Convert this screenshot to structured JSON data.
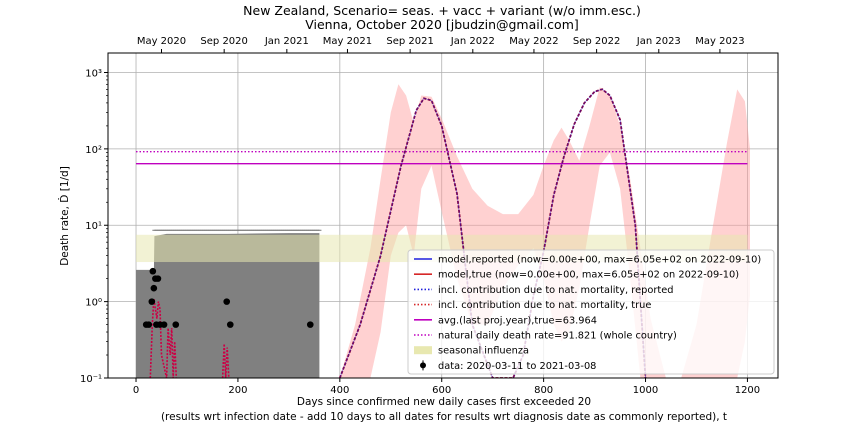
{
  "chart_data": {
    "type": "line",
    "title": "New Zealand, Scenario= seas. + vacc + variant (w/o imm.esc.)",
    "subtitle": "Vienna, October 2020 [jbudzin@gmail.com]",
    "xlabel": "Days since confirmed new daily cases first exceeded 20",
    "xlabel2": "(results wrt infection date - add 10 days to all dates for results wrt diagnosis date as commonly reported), t",
    "ylabel": "Death rate, Ḋ [1/d]",
    "y_scale": "log",
    "xlim": [
      -55,
      1260
    ],
    "ylim": [
      0.1,
      1800
    ],
    "x_ticks": [
      0,
      200,
      400,
      600,
      800,
      1000,
      1200
    ],
    "x_tick_labels": [
      "0",
      "200",
      "400",
      "600",
      "800",
      "1000",
      "1200"
    ],
    "y_ticks": [
      0.1,
      1,
      10,
      100,
      1000
    ],
    "y_tick_labels": [
      "10⁻¹",
      "10⁰",
      "10¹",
      "10²",
      "10³"
    ],
    "top_axis": {
      "tick_days": [
        50,
        173,
        296,
        415,
        538,
        661,
        781,
        904,
        1026,
        1146
      ],
      "tick_labels": [
        "May 2020",
        "Sep 2020",
        "Jan 2021",
        "May 2021",
        "Sep 2021",
        "Jan 2022",
        "May 2022",
        "Sep 2022",
        "Jan 2023",
        "May 2023"
      ]
    },
    "grid": true,
    "legend_position": "lower-right",
    "legend": [
      {
        "label": "model,reported (now=0.00e+00, max=6.05e+02 on 2022-09-10)",
        "style": "solid",
        "color": "#1f1fdd"
      },
      {
        "label": "model,true (now=0.00e+00, max=6.05e+02 on 2022-09-10)",
        "style": "solid",
        "color": "#d62728"
      },
      {
        "label": "incl. contribution due to nat. mortality, reported",
        "style": "dotted",
        "color": "#1f1fdd"
      },
      {
        "label": "incl. contribution due to nat. mortality, true",
        "style": "dotted",
        "color": "#d62728"
      },
      {
        "label": "avg.(last proj.year),true=63.964",
        "style": "solid",
        "color": "#bf00bf"
      },
      {
        "label": "natural daily death rate=91.821 (whole country)",
        "style": "dotted",
        "color": "#bf00bf"
      },
      {
        "label": "seasonal influenza",
        "style": "patch",
        "color": "#e8e8b0"
      },
      {
        "label": "data: 2020-03-11 to 2021-03-08",
        "style": "errorbar",
        "color": "#000000"
      }
    ],
    "reference_lines": {
      "avg_last_year": {
        "y": 63.964,
        "x_range": [
          0,
          1200
        ],
        "color": "#bf00bf"
      },
      "natural_death_rate": {
        "y": 91.821,
        "x_range": [
          0,
          1200
        ],
        "color": "#bf00bf"
      }
    },
    "seasonal_influenza_band": {
      "x_range": [
        0,
        1200
      ],
      "y_range": [
        3.3,
        7.5
      ],
      "color": "#e8e8b0"
    },
    "data_points": {
      "x": [
        20,
        25,
        31,
        33,
        35,
        38,
        40,
        43,
        47,
        55,
        78,
        178,
        185,
        342
      ],
      "y": [
        0.5,
        0.5,
        1.0,
        2.5,
        1.5,
        2.0,
        0.5,
        2.0,
        0.5,
        0.5,
        0.5,
        1.0,
        0.5,
        0.5
      ],
      "color": "#000000"
    },
    "data_cumulative_band": {
      "x": [
        0,
        35,
        36,
        60,
        180,
        300,
        360
      ],
      "y_upper": [
        2.6,
        2.6,
        7.2,
        7.7,
        7.7,
        7.9,
        7.9
      ],
      "color": "#808080"
    },
    "model_curve": {
      "x": [
        400,
        440,
        480,
        520,
        550,
        565,
        580,
        600,
        630,
        660,
        700,
        740,
        760,
        780,
        800,
        820,
        840,
        860,
        880,
        900,
        915,
        930,
        950,
        980,
        1000
      ],
      "y": [
        0.1,
        0.5,
        4.0,
        60,
        320,
        460,
        430,
        200,
        26,
        0.5,
        0.1,
        0.1,
        0.2,
        1.2,
        4.5,
        25,
        80,
        210,
        400,
        560,
        605,
        500,
        240,
        10,
        0.1
      ],
      "color": "#8b0038"
    },
    "confidence_band": {
      "x": [
        400,
        430,
        460,
        480,
        500,
        515,
        530,
        545,
        560,
        580,
        600,
        630,
        660,
        690,
        720,
        750,
        780,
        800,
        820,
        835,
        850,
        870,
        890,
        910,
        930,
        950,
        970,
        990,
        1010,
        1040,
        1070,
        1100,
        1130,
        1160,
        1180,
        1195,
        1205
      ],
      "y_upper": [
        0.1,
        0.5,
        5,
        40,
        300,
        700,
        500,
        220,
        500,
        480,
        250,
        80,
        30,
        18,
        14,
        14,
        25,
        60,
        130,
        190,
        130,
        70,
        200,
        640,
        500,
        200,
        40,
        5,
        0.6,
        0.1,
        0.1,
        0.5,
        8,
        120,
        600,
        420,
        100
      ],
      "y_lower": [
        0.1,
        0.1,
        0.1,
        0.4,
        4,
        8,
        10,
        4,
        30,
        60,
        15,
        2,
        0.5,
        0.5,
        1.5,
        3,
        5,
        2,
        0.5,
        0.3,
        0.4,
        1.5,
        10,
        60,
        90,
        30,
        2,
        0.1,
        0.1,
        0.1,
        0.1,
        0.1,
        0.1,
        0.1,
        0.1,
        0.3,
        1.2
      ],
      "color": "#ff9999"
    },
    "early_model_spikes": {
      "x": [
        28,
        32,
        35,
        38,
        41,
        44,
        47,
        50,
        60,
        63,
        67,
        70,
        73,
        76,
        79,
        170,
        173,
        176,
        179,
        182
      ],
      "y": [
        0.1,
        0.5,
        1.1,
        0.8,
        0.6,
        1.0,
        0.8,
        0.2,
        0.1,
        0.45,
        0.2,
        0.45,
        0.1,
        0.3,
        0.1,
        0.1,
        0.28,
        0.1,
        0.25,
        0.1
      ],
      "color": "#cc0044"
    }
  }
}
